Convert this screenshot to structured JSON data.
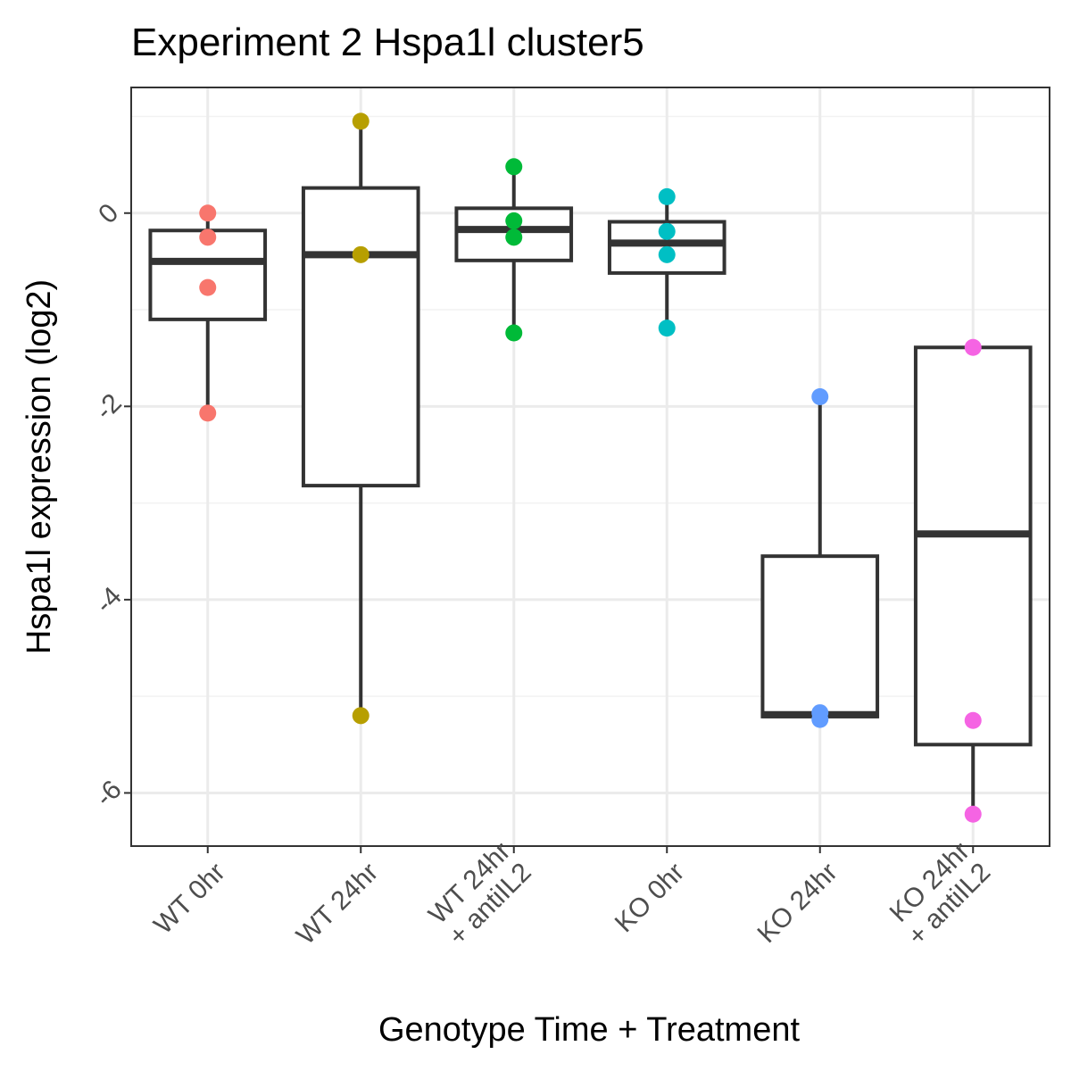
{
  "chart_data": {
    "type": "box",
    "title": "Experiment 2 Hspa1l cluster5",
    "xlabel": "Genotype Time + Treatment",
    "ylabel": "Hspa1l expression (log2)",
    "ylim": [
      -6.55,
      1.3
    ],
    "yticks": [
      0,
      -2,
      -4,
      -6
    ],
    "grid": true,
    "legend": "none",
    "categories": [
      {
        "lines": [
          "WT 0hr"
        ]
      },
      {
        "lines": [
          "WT 24hr"
        ]
      },
      {
        "lines": [
          "WT 24hr",
          "+ antiIL2"
        ]
      },
      {
        "lines": [
          "KO 0hr"
        ]
      },
      {
        "lines": [
          "KO 24hr"
        ]
      },
      {
        "lines": [
          "KO 24hr",
          "+ antiIL2"
        ]
      }
    ],
    "series": [
      {
        "color": "#F8766D",
        "box": {
          "lower_whisker": -2.07,
          "q1": -1.1,
          "median": -0.5,
          "q3": -0.18,
          "upper_whisker": 0.0
        },
        "points": [
          0.0,
          -0.25,
          -0.77,
          -2.07
        ]
      },
      {
        "color": "#B79F00",
        "box": {
          "lower_whisker": -5.2,
          "q1": -2.82,
          "median": -0.43,
          "q3": 0.26,
          "upper_whisker": 0.95
        },
        "points": [
          0.95,
          -0.43,
          -5.2
        ]
      },
      {
        "color": "#00BA38",
        "box": {
          "lower_whisker": -1.24,
          "q1": -0.49,
          "median": -0.17,
          "q3": 0.05,
          "upper_whisker": 0.48
        },
        "points": [
          0.48,
          -0.08,
          -0.25,
          -1.24
        ]
      },
      {
        "color": "#00BFC4",
        "box": {
          "lower_whisker": -1.19,
          "q1": -0.62,
          "median": -0.31,
          "q3": -0.09,
          "upper_whisker": 0.17
        },
        "points": [
          0.17,
          -0.19,
          -0.43,
          -1.19
        ]
      },
      {
        "color": "#619CFF",
        "box": {
          "lower_whisker": -5.21,
          "q1": -5.21,
          "median": -5.19,
          "q3": -3.55,
          "upper_whisker": -1.9
        },
        "points": [
          -1.9,
          -5.17,
          -5.24
        ]
      },
      {
        "color": "#F564E3",
        "box": {
          "lower_whisker": -6.22,
          "q1": -5.5,
          "median": -3.32,
          "q3": -1.39,
          "upper_whisker": -1.39
        },
        "points": [
          -1.39,
          -5.25,
          -6.22
        ]
      }
    ]
  }
}
